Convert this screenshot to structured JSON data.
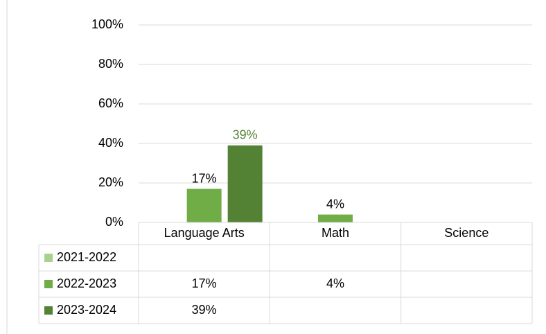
{
  "chart_data": {
    "type": "bar",
    "categories": [
      "Language Arts",
      "Math",
      "Science"
    ],
    "series": [
      {
        "name": "2021-2022",
        "color": "#a9d18e",
        "label_color": "#000000",
        "values": [
          null,
          null,
          null
        ],
        "value_labels": [
          null,
          null,
          null
        ]
      },
      {
        "name": "2022-2023",
        "color": "#70ad47",
        "label_color": "#000000",
        "values": [
          17,
          4,
          null
        ],
        "value_labels": [
          "17%",
          "4%",
          null
        ]
      },
      {
        "name": "2023-2024",
        "color": "#548235",
        "label_color": "#548235",
        "values": [
          39,
          null,
          null
        ],
        "value_labels": [
          "39%",
          null,
          null
        ]
      }
    ],
    "ylim": [
      0,
      100
    ],
    "yticks": [
      {
        "value": 0,
        "label": "0%"
      },
      {
        "value": 20,
        "label": "20%"
      },
      {
        "value": 40,
        "label": "40%"
      },
      {
        "value": 60,
        "label": "60%"
      },
      {
        "value": 80,
        "label": "80%"
      },
      {
        "value": 100,
        "label": "100%"
      }
    ],
    "grid": true,
    "data_table": true
  }
}
